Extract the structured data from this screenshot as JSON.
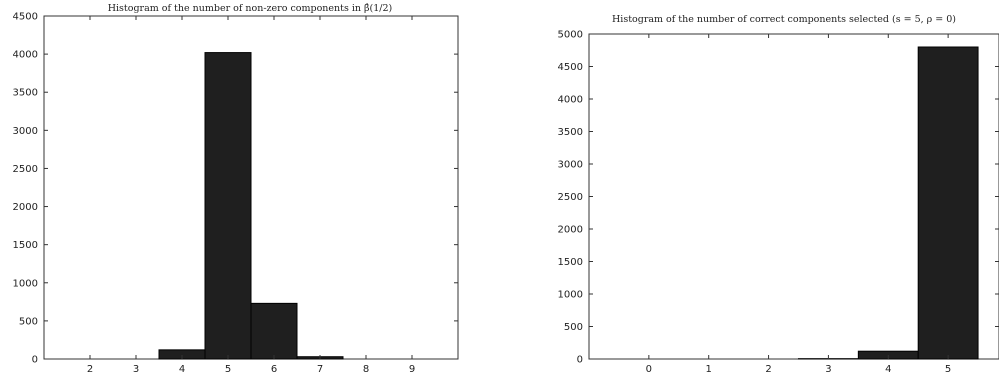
{
  "chart_data": [
    {
      "type": "bar",
      "title": "Histogram of the number of non-zero components in β̂(1/2)",
      "xlabel": "",
      "ylabel": "",
      "x": [
        2,
        3,
        4,
        5,
        6,
        7,
        8,
        9
      ],
      "values": [
        0,
        0,
        120,
        4020,
        730,
        30,
        0,
        0
      ],
      "xlim": [
        1,
        10
      ],
      "ylim": [
        0,
        4500
      ],
      "yticks": [
        0,
        500,
        1000,
        1500,
        2000,
        2500,
        3000,
        3500,
        4000,
        4500
      ],
      "xticks": [
        2,
        3,
        4,
        5,
        6,
        7,
        8,
        9
      ],
      "bar_color": "#1f1f1f",
      "grid": false
    },
    {
      "type": "bar",
      "title": "Histogram of the number of correct components selected (s = 5, ρ = 0)",
      "xlabel": "",
      "ylabel": "",
      "x": [
        0,
        1,
        2,
        3,
        4,
        5
      ],
      "values": [
        0,
        0,
        0,
        5,
        120,
        4800
      ],
      "xlim": [
        -1,
        5.85
      ],
      "ylim": [
        0,
        5000
      ],
      "yticks": [
        0,
        500,
        1000,
        1500,
        2000,
        2500,
        3000,
        3500,
        4000,
        4500,
        5000
      ],
      "xticks": [
        0,
        1,
        2,
        3,
        4,
        5
      ],
      "bar_color": "#1f1f1f",
      "grid": false
    }
  ]
}
